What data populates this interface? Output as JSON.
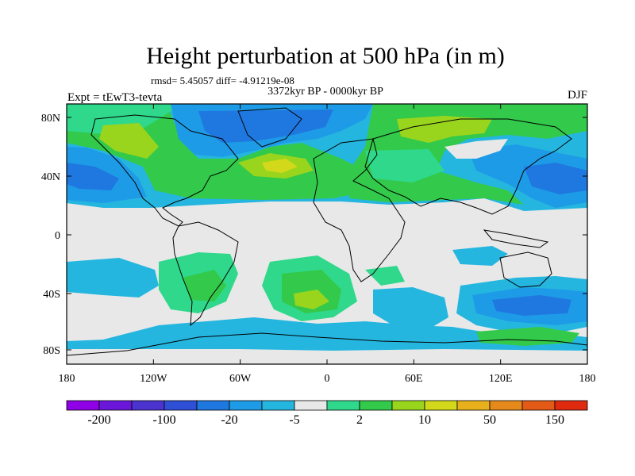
{
  "title": "Height perturbation at 500 hPa (in m)",
  "stats": "rmsd= 5.45057 diff= -4.91219e-08",
  "period": "3372kyr BP - 0000kyr BP",
  "experiment": "Expt = tEwT3-tevta",
  "season": "DJF",
  "lat_ticks": [
    "80N",
    "40N",
    "0",
    "40S",
    "80S"
  ],
  "lon_ticks": [
    "180",
    "120W",
    "60W",
    "0",
    "60E",
    "120E",
    "180"
  ],
  "colorbar": {
    "labels": [
      "-200",
      "-100",
      "-20",
      "-5",
      "2",
      "10",
      "50",
      "150"
    ],
    "colors": [
      "#8f00e6",
      "#6a17d9",
      "#4b33d0",
      "#2f4fd6",
      "#1f78e0",
      "#1e9be6",
      "#25b6e0",
      "#e8e8e8",
      "#2fd88a",
      "#33c94a",
      "#9ad51e",
      "#d3d91a",
      "#e8b01c",
      "#e58a1a",
      "#e25a16",
      "#e02a10"
    ]
  },
  "palette": {
    "background": "#e8e8e8",
    "dark_blue": "#1f78e0",
    "mid_blue": "#1e9be6",
    "cyan": "#25b6e0",
    "teal": "#2fd88a",
    "green": "#33c94a",
    "lime": "#9ad51e"
  }
}
